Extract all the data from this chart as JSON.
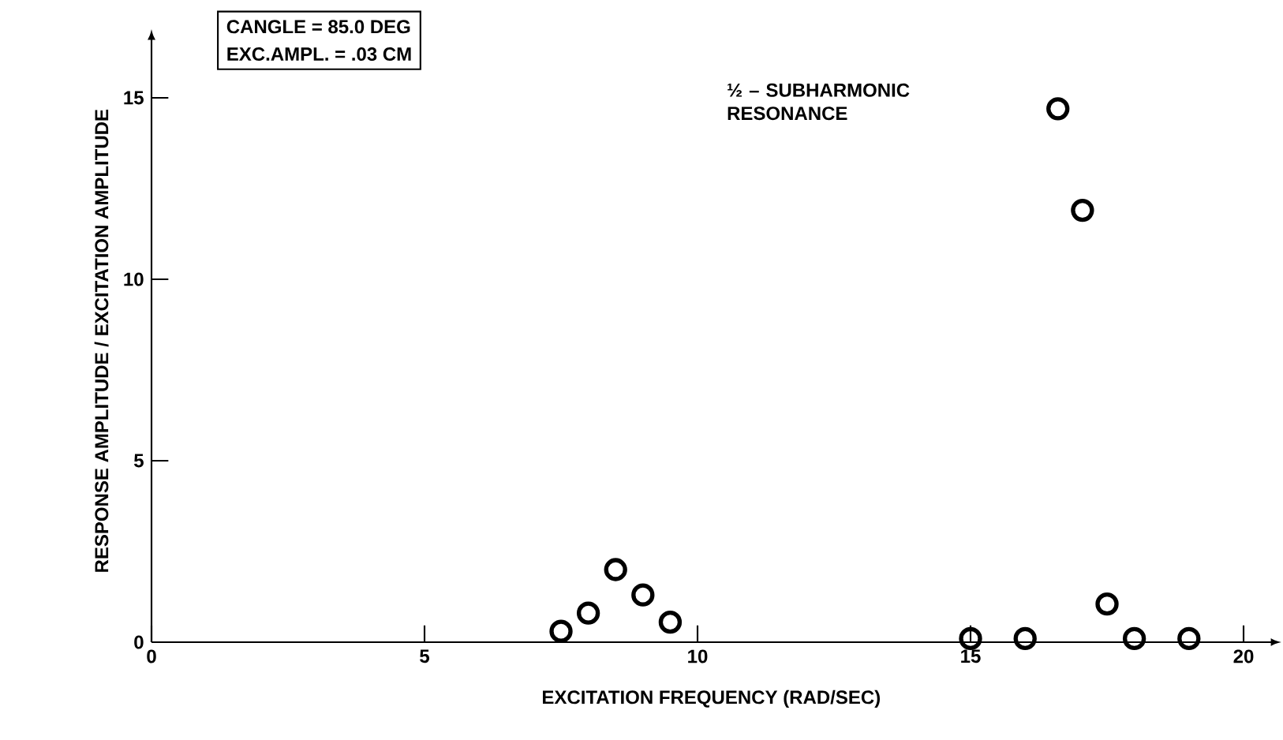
{
  "chart_data": {
    "type": "scatter",
    "xlabel": "EXCITATION FREQUENCY (RAD/SEC)",
    "ylabel": "RESPONSE AMPLITUDE / EXCITATION AMPLITUDE",
    "annotations": [
      "CANGLE = 85.0 DEG",
      "EXC.AMPL. = .03 CM",
      "½ – SUBHARMONIC RESONANCE"
    ],
    "series": [
      {
        "color": "#000000",
        "x": [
          7.5,
          8.0,
          8.5,
          9.0,
          9.5,
          15.0,
          16.0,
          16.6,
          17.05,
          17.5,
          18.0,
          19.0
        ],
        "values": [
          0.3,
          0.8,
          2.0,
          1.3,
          0.55,
          0.1,
          0.1,
          14.7,
          11.9,
          1.05,
          0.1,
          0.1
        ]
      }
    ],
    "xlim": [
      0,
      20.5
    ],
    "ylim": [
      0,
      16.6
    ],
    "xticks": [
      0,
      5,
      10,
      15,
      20
    ],
    "yticks": [
      0,
      5,
      10,
      15
    ],
    "marker": "circle"
  }
}
